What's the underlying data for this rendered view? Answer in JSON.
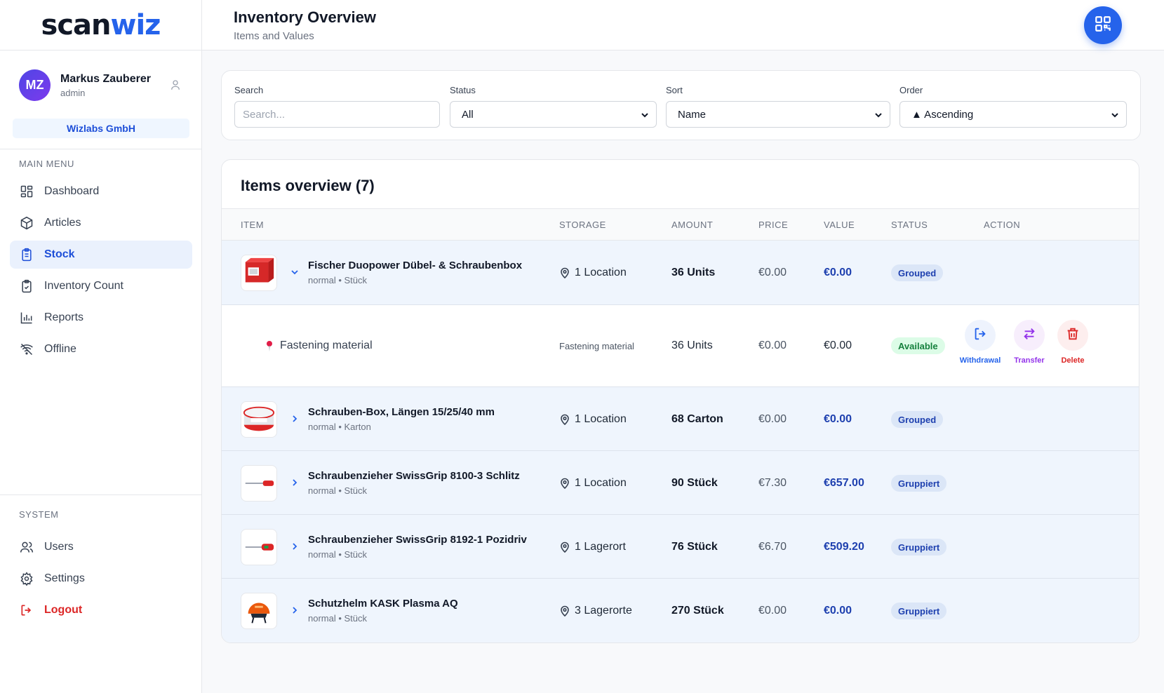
{
  "brand": {
    "logo_part1": "scan",
    "logo_part2": "wiz"
  },
  "user": {
    "initials": "MZ",
    "name": "Markus Zauberer",
    "role": "admin",
    "company": "Wizlabs GmbH"
  },
  "sidebar": {
    "main_title": "MAIN MENU",
    "items": [
      {
        "label": "Dashboard",
        "icon": "dashboard-icon"
      },
      {
        "label": "Articles",
        "icon": "box-icon"
      },
      {
        "label": "Stock",
        "icon": "clipboard-icon",
        "active": true
      },
      {
        "label": "Inventory Count",
        "icon": "clipboard-check-icon"
      },
      {
        "label": "Reports",
        "icon": "bar-chart-icon"
      },
      {
        "label": "Offline",
        "icon": "wifi-off-icon"
      }
    ],
    "system_title": "SYSTEM",
    "system_items": [
      {
        "label": "Users",
        "icon": "users-icon"
      },
      {
        "label": "Settings",
        "icon": "gear-icon"
      },
      {
        "label": "Logout",
        "icon": "logout-icon"
      }
    ]
  },
  "header": {
    "title": "Inventory Overview",
    "subtitle": "Items and Values"
  },
  "filters": {
    "search_label": "Search",
    "search_placeholder": "Search...",
    "status_label": "Status",
    "status_value": "All",
    "sort_label": "Sort",
    "sort_value": "Name",
    "order_label": "Order",
    "order_value": "▲ Ascending"
  },
  "table": {
    "title": "Items overview (7)",
    "columns": [
      "ITEM",
      "STORAGE",
      "AMOUNT",
      "PRICE",
      "VALUE",
      "STATUS",
      "ACTION"
    ],
    "rows": [
      {
        "name": "Fischer Duopower Dübel- & Schraubenbox",
        "meta": "normal • Stück",
        "storage": "1 Location",
        "amount": "36 Units",
        "price": "€0.00",
        "value": "€0.00",
        "status": "Grouped",
        "expanded": true
      },
      {
        "name": "Schrauben-Box, Längen 15/25/40 mm",
        "meta": "normal • Karton",
        "storage": "1 Location",
        "amount": "68 Carton",
        "price": "€0.00",
        "value": "€0.00",
        "status": "Grouped"
      },
      {
        "name": "Schraubenzieher SwissGrip 8100-3 Schlitz",
        "meta": "normal • Stück",
        "storage": "1 Location",
        "amount": "90 Stück",
        "price": "€7.30",
        "value": "€657.00",
        "status": "Gruppiert"
      },
      {
        "name": "Schraubenzieher SwissGrip 8192-1 Pozidriv",
        "meta": "normal • Stück",
        "storage": "1 Lagerort",
        "amount": "76 Stück",
        "price": "€6.70",
        "value": "€509.20",
        "status": "Gruppiert"
      },
      {
        "name": "Schutzhelm KASK Plasma AQ",
        "meta": "normal • Stück",
        "storage": "3 Lagerorte",
        "amount": "270 Stück",
        "price": "€0.00",
        "value": "€0.00",
        "status": "Gruppiert"
      }
    ],
    "sub_row": {
      "location": "Fastening material",
      "storage": "Fastening material",
      "amount": "36 Units",
      "price": "€0.00",
      "value": "€0.00",
      "status": "Available",
      "actions": {
        "withdrawal": "Withdrawal",
        "transfer": "Transfer",
        "delete": "Delete"
      }
    }
  },
  "colors": {
    "accent": "#2563eb",
    "danger": "#dc2626",
    "purple": "#9333ea",
    "success": "#15803d"
  }
}
